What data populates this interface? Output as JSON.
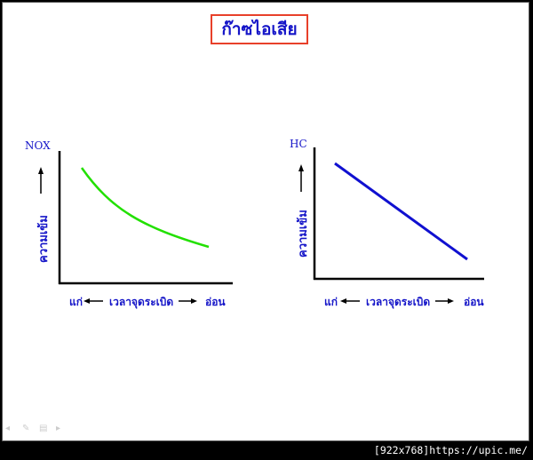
{
  "slide": {
    "title": "ก๊าซไอเสีย"
  },
  "charts": [
    {
      "id": "nox",
      "y_series_label": "NOX",
      "y_axis_label": "ความเข้ม",
      "x_left": "แก่",
      "x_middle": "เวลาจุดระเบิด",
      "x_right": "อ่อน",
      "line_color": "#22e000"
    },
    {
      "id": "hc",
      "y_series_label": "HC",
      "y_axis_label": "ความเข้ม",
      "x_left": "แก่",
      "x_middle": "เวลาจุดระเบิด",
      "x_right": "อ่อน",
      "line_color": "#1010d0"
    }
  ],
  "watermark": "[922x768]https://upic.me/",
  "nav_icons": [
    "arrow-left-icon",
    "pen-icon",
    "menu-icon",
    "arrow-right-icon"
  ],
  "colors": {
    "text": "#1515c8",
    "title_border": "#e8402a"
  }
}
